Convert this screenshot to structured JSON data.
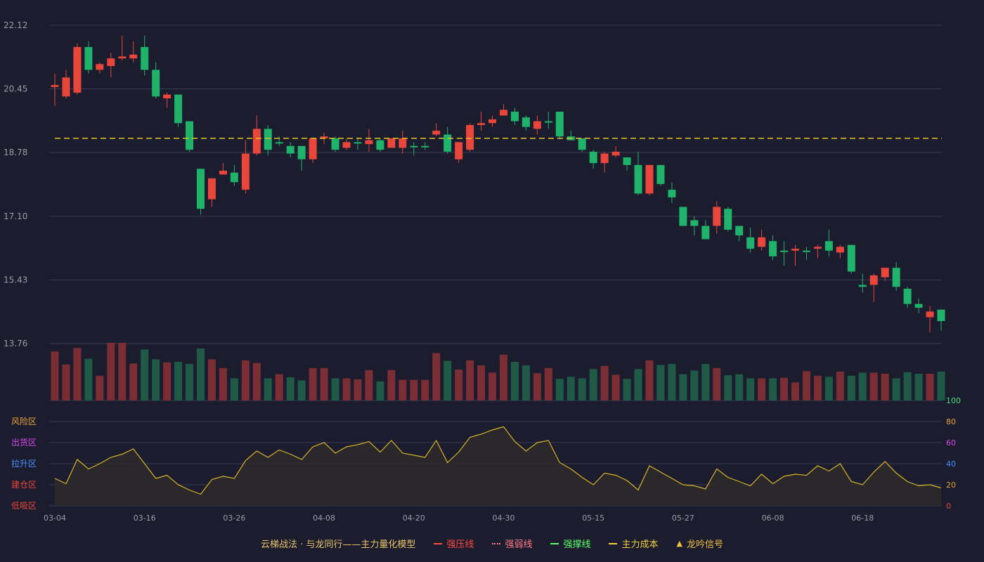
{
  "chart_data": {
    "type": "candlestick",
    "y_ticks": [
      "22.12",
      "20.45",
      "18.78",
      "17.10",
      "15.43",
      "13.76"
    ],
    "ylim": [
      13.76,
      22.12
    ],
    "x_tick_labels": [
      {
        "index": 0,
        "label": "03-04"
      },
      {
        "index": 8,
        "label": "03-16"
      },
      {
        "index": 16,
        "label": "03-26"
      },
      {
        "index": 24,
        "label": "04-08"
      },
      {
        "index": 32,
        "label": "04-20"
      },
      {
        "index": 40,
        "label": "04-30"
      },
      {
        "index": 48,
        "label": "05-15"
      },
      {
        "index": 56,
        "label": "05-27"
      },
      {
        "index": 64,
        "label": "06-08"
      },
      {
        "index": 72,
        "label": "06-18"
      }
    ],
    "main_cost": 19.15,
    "candles": [
      [
        20.5,
        20.55,
        20.0,
        20.85
      ],
      [
        20.25,
        20.75,
        20.2,
        20.95
      ],
      [
        20.35,
        21.55,
        20.3,
        21.65
      ],
      [
        21.55,
        20.95,
        20.85,
        21.7
      ],
      [
        20.95,
        21.1,
        20.85,
        21.15
      ],
      [
        21.05,
        21.25,
        20.75,
        21.4
      ],
      [
        21.25,
        21.3,
        21.2,
        21.85
      ],
      [
        21.25,
        21.35,
        21.15,
        21.7
      ],
      [
        21.55,
        20.95,
        20.8,
        21.85
      ],
      [
        20.95,
        20.25,
        20.2,
        21.15
      ],
      [
        20.2,
        20.3,
        19.95,
        20.35
      ],
      [
        20.3,
        19.55,
        19.45,
        20.3
      ],
      [
        19.6,
        18.85,
        18.8,
        19.6
      ],
      [
        18.35,
        17.3,
        17.15,
        18.35
      ],
      [
        17.55,
        18.1,
        17.35,
        18.1
      ],
      [
        18.2,
        18.3,
        18.2,
        18.5
      ],
      [
        18.25,
        18.0,
        17.9,
        18.45
      ],
      [
        17.8,
        18.75,
        17.7,
        19.1
      ],
      [
        18.75,
        19.4,
        18.7,
        19.75
      ],
      [
        19.4,
        18.85,
        18.7,
        19.5
      ],
      [
        19.05,
        19.05,
        18.95,
        19.2
      ],
      [
        18.95,
        18.75,
        18.65,
        19.05
      ],
      [
        18.95,
        18.6,
        18.3,
        18.95
      ],
      [
        18.6,
        19.15,
        18.5,
        19.15
      ],
      [
        19.15,
        19.2,
        19.0,
        19.3
      ],
      [
        19.15,
        18.85,
        18.8,
        19.2
      ],
      [
        18.9,
        19.05,
        18.85,
        19.15
      ],
      [
        19.05,
        19.05,
        18.85,
        19.15
      ],
      [
        19.0,
        19.1,
        18.8,
        19.4
      ],
      [
        19.1,
        18.85,
        18.8,
        19.15
      ],
      [
        18.9,
        19.15,
        18.9,
        19.15
      ],
      [
        18.9,
        19.15,
        18.75,
        19.35
      ],
      [
        18.95,
        18.95,
        18.7,
        19.05
      ],
      [
        18.95,
        18.95,
        18.85,
        19.05
      ],
      [
        19.25,
        19.35,
        19.2,
        19.55
      ],
      [
        19.25,
        18.8,
        18.75,
        19.45
      ],
      [
        18.6,
        19.05,
        18.5,
        19.05
      ],
      [
        18.85,
        19.5,
        18.8,
        19.55
      ],
      [
        19.5,
        19.55,
        19.35,
        19.85
      ],
      [
        19.55,
        19.65,
        19.45,
        19.75
      ],
      [
        19.75,
        19.9,
        19.75,
        20.05
      ],
      [
        19.85,
        19.6,
        19.5,
        19.95
      ],
      [
        19.7,
        19.45,
        19.35,
        19.75
      ],
      [
        19.4,
        19.6,
        19.25,
        19.75
      ],
      [
        19.6,
        19.6,
        19.4,
        19.85
      ],
      [
        19.85,
        19.2,
        19.15,
        19.85
      ],
      [
        19.2,
        19.1,
        19.1,
        19.35
      ],
      [
        19.15,
        18.85,
        18.8,
        19.15
      ],
      [
        18.8,
        18.5,
        18.35,
        18.85
      ],
      [
        18.5,
        18.75,
        18.25,
        18.8
      ],
      [
        18.7,
        18.8,
        18.65,
        18.95
      ],
      [
        18.65,
        18.45,
        18.3,
        18.65
      ],
      [
        18.45,
        17.7,
        17.65,
        18.8
      ],
      [
        17.7,
        18.45,
        17.65,
        18.45
      ],
      [
        18.45,
        17.95,
        17.9,
        18.45
      ],
      [
        17.8,
        17.6,
        17.45,
        18.0
      ],
      [
        17.35,
        16.85,
        16.85,
        17.35
      ],
      [
        17.0,
        16.85,
        16.6,
        17.1
      ],
      [
        16.85,
        16.5,
        16.55,
        17.0
      ],
      [
        16.85,
        17.35,
        16.65,
        17.5
      ],
      [
        17.3,
        16.75,
        16.7,
        17.35
      ],
      [
        16.85,
        16.6,
        16.45,
        16.85
      ],
      [
        16.55,
        16.25,
        16.15,
        16.8
      ],
      [
        16.3,
        16.55,
        16.2,
        16.75
      ],
      [
        16.45,
        16.05,
        15.95,
        16.6
      ],
      [
        16.2,
        16.2,
        15.8,
        16.45
      ],
      [
        16.2,
        16.25,
        15.8,
        16.35
      ],
      [
        16.2,
        16.2,
        15.95,
        16.3
      ],
      [
        16.25,
        16.3,
        16.0,
        16.35
      ],
      [
        16.45,
        16.2,
        16.05,
        16.75
      ],
      [
        16.15,
        16.3,
        16.0,
        16.35
      ],
      [
        16.35,
        15.65,
        15.6,
        16.35
      ],
      [
        15.3,
        15.25,
        15.1,
        15.6
      ],
      [
        15.3,
        15.55,
        14.85,
        15.6
      ],
      [
        15.5,
        15.75,
        15.4,
        15.75
      ],
      [
        15.75,
        15.25,
        15.15,
        15.9
      ],
      [
        15.2,
        14.8,
        14.7,
        15.25
      ],
      [
        14.8,
        14.7,
        14.55,
        14.95
      ],
      [
        14.45,
        14.6,
        14.05,
        14.75
      ],
      [
        14.65,
        14.35,
        14.1,
        14.65
      ]
    ],
    "volumes": [
      95,
      70,
      102,
      81,
      48,
      112,
      112,
      72,
      99,
      80,
      74,
      75,
      71,
      101,
      80,
      63,
      43,
      78,
      73,
      43,
      51,
      45,
      39,
      63,
      63,
      43,
      43,
      41,
      59,
      37,
      59,
      40,
      40,
      40,
      92,
      77,
      60,
      78,
      68,
      54,
      89,
      75,
      68,
      53,
      63,
      42,
      46,
      43,
      61,
      67,
      50,
      42,
      61,
      78,
      69,
      71,
      51,
      58,
      71,
      63,
      49,
      51,
      43,
      43,
      43,
      44,
      35,
      57,
      48,
      46,
      56,
      48,
      54,
      54,
      52,
      43,
      55,
      52,
      52,
      56
    ],
    "indicator": {
      "ylim": [
        0,
        100
      ],
      "right_ticks": [
        "100",
        "80",
        "60",
        "40",
        "20",
        "0"
      ],
      "zones": [
        "风险区",
        "出货区",
        "拉升区",
        "建仓区",
        "低吸区"
      ],
      "values": [
        26,
        21,
        44,
        35,
        40,
        46,
        49,
        54,
        40,
        26,
        29,
        20,
        15,
        11,
        25,
        28,
        26,
        43,
        52,
        46,
        53,
        49,
        44,
        56,
        60,
        50,
        56,
        58,
        61,
        51,
        62,
        50,
        48,
        46,
        62,
        41,
        51,
        65,
        68,
        72,
        75,
        61,
        52,
        60,
        62,
        41,
        35,
        27,
        20,
        31,
        29,
        24,
        15,
        38,
        32,
        26,
        20,
        19,
        16,
        35,
        27,
        23,
        19,
        30,
        21,
        28,
        30,
        29,
        38,
        33,
        40,
        23,
        20,
        32,
        42,
        31,
        23,
        19,
        20,
        17
      ]
    },
    "colors": {
      "up": "#e8463a",
      "down": "#1fb26a",
      "vol_up": "#7a2e34",
      "vol_down": "#1e5a45",
      "cost_line": "#e8c320",
      "indicator_line": "#d8b22a",
      "indicator_fill": "#2c2a2b",
      "grid": "#3a3c52",
      "axis_text": "#9a9cab"
    }
  },
  "legend": {
    "title": "云梯战法 · 与龙同行——主力量化模型",
    "items": [
      {
        "label": "强压线",
        "color": "#ff4b3e",
        "style": "solid"
      },
      {
        "label": "强弱线",
        "color": "#ff7a8a",
        "style": "dotted"
      },
      {
        "label": "强撑线",
        "color": "#5cff6a",
        "style": "solid"
      },
      {
        "label": "主力成本",
        "color": "#f0d040",
        "style": "dashed"
      },
      {
        "label": "龙吟信号",
        "color": "#f0c040",
        "style": "triangle"
      }
    ]
  }
}
